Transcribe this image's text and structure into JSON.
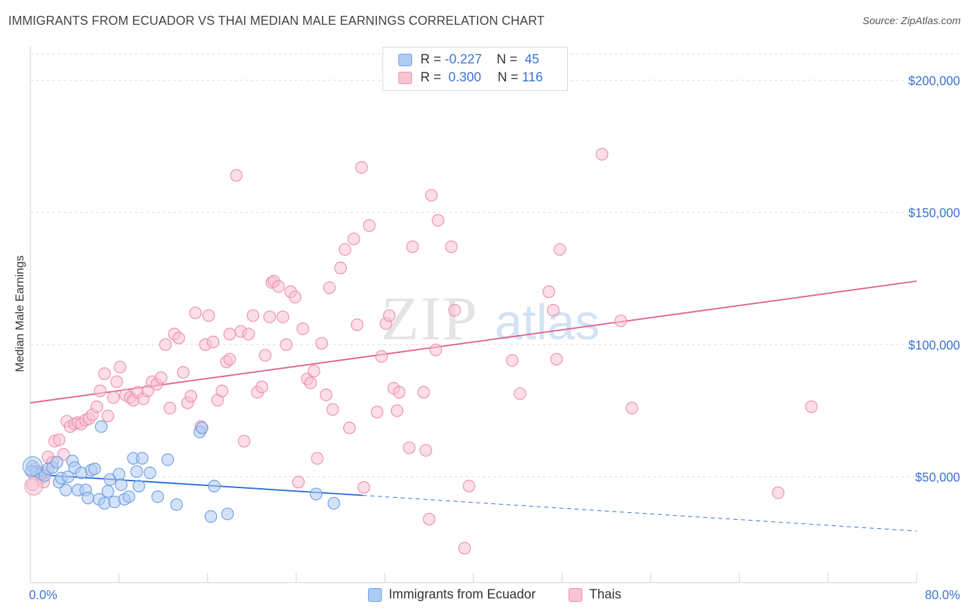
{
  "title": "IMMIGRANTS FROM ECUADOR VS THAI MEDIAN MALE EARNINGS CORRELATION CHART",
  "source": "Source: ZipAtlas.com",
  "watermark": {
    "zip": "ZIP",
    "atlas": "atlas"
  },
  "legend": {
    "r_label": "R =",
    "n_label": "N =",
    "series": [
      {
        "name": "Immigrants from Ecuador",
        "r": "-0.227",
        "n": "45",
        "fill": "#aecbf2",
        "stroke": "#6e9fe0"
      },
      {
        "name": "Thais",
        "r": "0.300",
        "n": "116",
        "fill": "#f8c3d3",
        "stroke": "#ee8fae"
      }
    ]
  },
  "chart_data": {
    "type": "scatter",
    "title": "IMMIGRANTS FROM ECUADOR VS THAI MEDIAN MALE EARNINGS CORRELATION CHART",
    "xlabel": "",
    "ylabel": "Median Male Earnings",
    "xlim": [
      0,
      80
    ],
    "ylim": [
      10000,
      210000
    ],
    "x_tick_labels": [
      "0.0%",
      "80.0%"
    ],
    "y_ticks": [
      50000,
      100000,
      150000,
      200000
    ],
    "y_tick_labels": [
      "$50,000",
      "$100,000",
      "$150,000",
      "$200,000"
    ],
    "grid": true,
    "legend_position": "top-center",
    "series": [
      {
        "name": "Immigrants from Ecuador",
        "color": "#6e9fe0",
        "fill": "#aecbf2",
        "trend": {
          "x": [
            0,
            30
          ],
          "y": [
            51000,
            43000
          ],
          "dashed_to": [
            80,
            29500
          ],
          "color": "#2f6fd6"
        },
        "points": [
          [
            0.2,
            54000
          ],
          [
            0.5,
            52000
          ],
          [
            0.9,
            51000
          ],
          [
            1.3,
            50500
          ],
          [
            1.6,
            53000
          ],
          [
            2.0,
            53500
          ],
          [
            2.4,
            55500
          ],
          [
            2.6,
            48000
          ],
          [
            2.8,
            49500
          ],
          [
            3.2,
            45000
          ],
          [
            3.4,
            50000
          ],
          [
            3.8,
            56000
          ],
          [
            4.0,
            53500
          ],
          [
            4.3,
            45000
          ],
          [
            4.6,
            51500
          ],
          [
            5.0,
            45000
          ],
          [
            5.2,
            42000
          ],
          [
            5.5,
            52500
          ],
          [
            5.8,
            53000
          ],
          [
            6.2,
            41500
          ],
          [
            6.4,
            69000
          ],
          [
            6.7,
            40000
          ],
          [
            7.0,
            44500
          ],
          [
            7.2,
            49000
          ],
          [
            7.6,
            40500
          ],
          [
            8.0,
            51000
          ],
          [
            8.2,
            47000
          ],
          [
            8.5,
            41500
          ],
          [
            8.9,
            42500
          ],
          [
            9.3,
            57000
          ],
          [
            9.6,
            52000
          ],
          [
            9.8,
            46500
          ],
          [
            10.1,
            57000
          ],
          [
            10.8,
            51500
          ],
          [
            11.5,
            42500
          ],
          [
            12.4,
            56500
          ],
          [
            13.2,
            39500
          ],
          [
            15.3,
            67000
          ],
          [
            15.5,
            68500
          ],
          [
            16.3,
            35000
          ],
          [
            16.6,
            46500
          ],
          [
            17.8,
            36000
          ],
          [
            25.8,
            43500
          ],
          [
            27.4,
            40000
          ],
          [
            0.1,
            52000
          ]
        ]
      },
      {
        "name": "Thais",
        "color": "#ee8fae",
        "fill": "#f8c3d3",
        "trend": {
          "x": [
            0,
            80
          ],
          "y": [
            78000,
            124000
          ],
          "color": "#e0658e"
        },
        "points": [
          [
            0.2,
            47000
          ],
          [
            0.4,
            53000
          ],
          [
            0.7,
            52000
          ],
          [
            1.0,
            49500
          ],
          [
            1.3,
            51500
          ],
          [
            1.6,
            57500
          ],
          [
            2.0,
            55500
          ],
          [
            2.2,
            63500
          ],
          [
            2.6,
            64000
          ],
          [
            3.0,
            58500
          ],
          [
            3.3,
            71000
          ],
          [
            3.6,
            69000
          ],
          [
            4.0,
            70000
          ],
          [
            4.3,
            70500
          ],
          [
            4.6,
            70000
          ],
          [
            5.0,
            71500
          ],
          [
            5.3,
            72000
          ],
          [
            5.6,
            73500
          ],
          [
            6.0,
            76500
          ],
          [
            6.3,
            82500
          ],
          [
            6.7,
            89000
          ],
          [
            7.0,
            73000
          ],
          [
            7.5,
            80000
          ],
          [
            7.8,
            86000
          ],
          [
            8.1,
            91500
          ],
          [
            8.6,
            81000
          ],
          [
            9.0,
            80000
          ],
          [
            9.3,
            79000
          ],
          [
            9.7,
            82000
          ],
          [
            10.2,
            79500
          ],
          [
            10.6,
            82500
          ],
          [
            11.0,
            86000
          ],
          [
            11.4,
            85000
          ],
          [
            11.8,
            87500
          ],
          [
            12.2,
            100000
          ],
          [
            12.6,
            76000
          ],
          [
            13.0,
            104000
          ],
          [
            13.4,
            102500
          ],
          [
            13.8,
            89500
          ],
          [
            14.2,
            78000
          ],
          [
            14.5,
            80500
          ],
          [
            14.9,
            112000
          ],
          [
            15.4,
            69000
          ],
          [
            15.8,
            100000
          ],
          [
            16.1,
            111000
          ],
          [
            16.5,
            101000
          ],
          [
            16.9,
            79000
          ],
          [
            17.3,
            82500
          ],
          [
            17.7,
            93500
          ],
          [
            18.0,
            94500
          ],
          [
            18.0,
            104000
          ],
          [
            18.6,
            164000
          ],
          [
            19.0,
            105000
          ],
          [
            19.3,
            63500
          ],
          [
            19.7,
            104000
          ],
          [
            20.1,
            111000
          ],
          [
            20.5,
            82000
          ],
          [
            20.9,
            84000
          ],
          [
            21.2,
            96000
          ],
          [
            21.6,
            110500
          ],
          [
            21.8,
            123500
          ],
          [
            22.0,
            124000
          ],
          [
            22.4,
            122000
          ],
          [
            22.8,
            110500
          ],
          [
            23.1,
            100000
          ],
          [
            23.5,
            120000
          ],
          [
            23.9,
            118000
          ],
          [
            24.2,
            48000
          ],
          [
            24.6,
            106000
          ],
          [
            25.0,
            87000
          ],
          [
            25.3,
            85500
          ],
          [
            25.6,
            90000
          ],
          [
            25.9,
            57000
          ],
          [
            26.3,
            100500
          ],
          [
            26.7,
            81000
          ],
          [
            27.0,
            121500
          ],
          [
            27.3,
            75500
          ],
          [
            28.0,
            129000
          ],
          [
            28.4,
            136000
          ],
          [
            28.8,
            68500
          ],
          [
            29.2,
            140000
          ],
          [
            29.5,
            107500
          ],
          [
            29.9,
            167000
          ],
          [
            30.1,
            46000
          ],
          [
            30.6,
            145000
          ],
          [
            31.3,
            74500
          ],
          [
            31.7,
            95500
          ],
          [
            32.1,
            108000
          ],
          [
            32.4,
            111000
          ],
          [
            32.8,
            83500
          ],
          [
            33.1,
            75000
          ],
          [
            33.3,
            82000
          ],
          [
            34.2,
            61000
          ],
          [
            34.5,
            137000
          ],
          [
            35.5,
            82000
          ],
          [
            35.7,
            60000
          ],
          [
            36.0,
            34000
          ],
          [
            36.2,
            156500
          ],
          [
            36.6,
            98000
          ],
          [
            36.8,
            147000
          ],
          [
            38.0,
            137000
          ],
          [
            38.3,
            113000
          ],
          [
            39.2,
            23000
          ],
          [
            39.6,
            46500
          ],
          [
            43.5,
            94000
          ],
          [
            44.2,
            81500
          ],
          [
            46.8,
            120000
          ],
          [
            47.2,
            113000
          ],
          [
            47.5,
            94500
          ],
          [
            47.8,
            136000
          ],
          [
            51.6,
            172000
          ],
          [
            53.3,
            109000
          ],
          [
            54.3,
            76000
          ],
          [
            67.5,
            44000
          ],
          [
            70.5,
            76500
          ],
          [
            1.2,
            48000
          ]
        ]
      }
    ]
  }
}
